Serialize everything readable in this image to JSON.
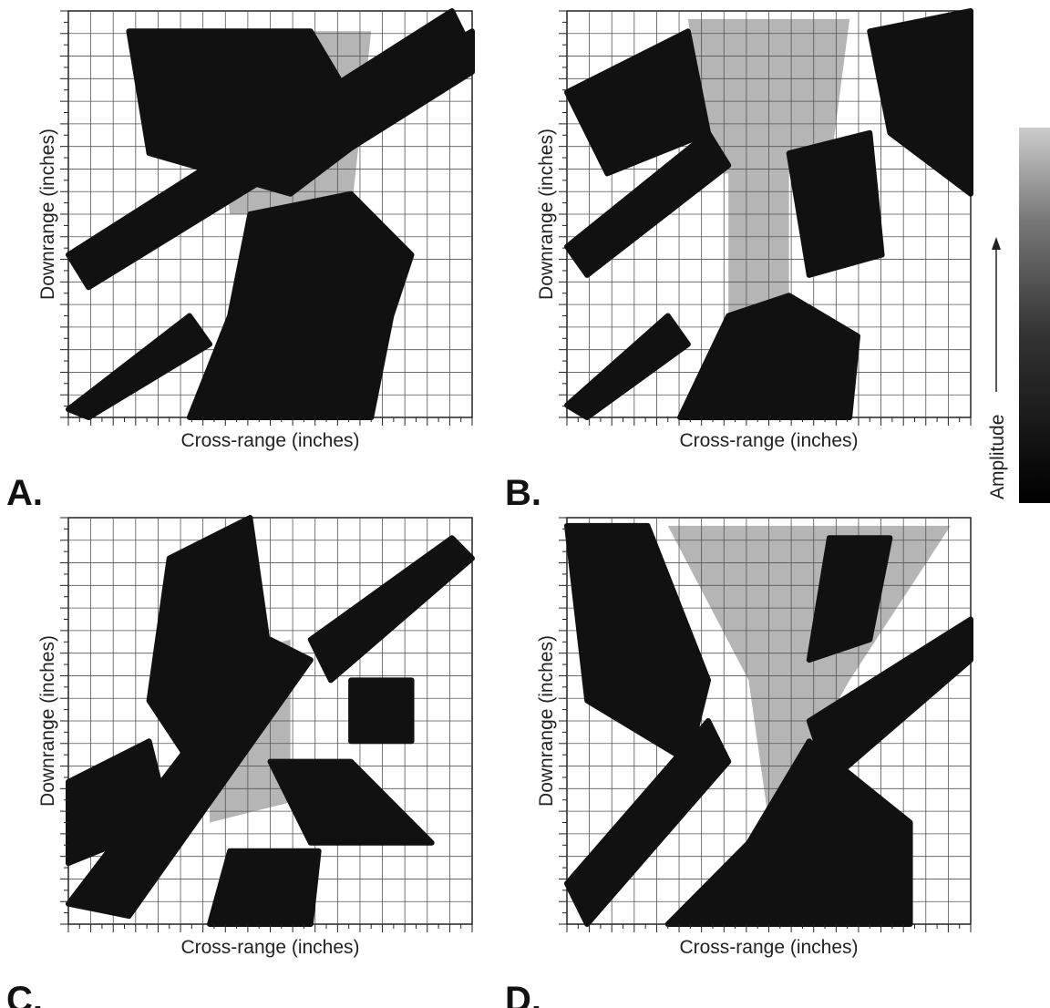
{
  "panels": [
    {
      "label": "A.",
      "x_label": "Cross-range (inches)",
      "y_label": "Downrange (inches)"
    },
    {
      "label": "B.",
      "x_label": "Cross-range (inches)",
      "y_label": "Downrange (inches)"
    },
    {
      "label": "C.",
      "x_label": "Cross-range (inches)",
      "y_label": "Downrange (inches)"
    },
    {
      "label": "D.",
      "x_label": "Cross-range (inches)",
      "y_label": "Downrange (inches)"
    }
  ],
  "colorbar": {
    "label": "Amplitude"
  }
}
